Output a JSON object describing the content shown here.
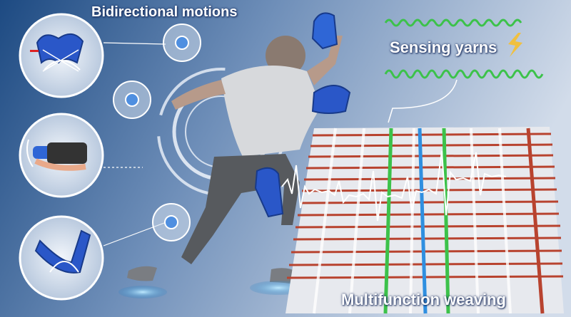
{
  "labels": {
    "bidirectional": "Bidirectional motions",
    "sensing": "Sensing yarns",
    "weaving": "Multifunction weaving"
  },
  "colors": {
    "background_left": "#1f4f88",
    "background_right": "#c9d6e8",
    "accent_blue": "#2a57c8",
    "yarn_green": "#3cc24a",
    "fabric_red": "#b8432f",
    "lightning": "#f0c040"
  },
  "icons": [
    "lightning-icon",
    "rotation-arrow-icon",
    "sensing-yarn-coil",
    "actuator-glove",
    "actuator-elbow",
    "actuator-knee"
  ]
}
